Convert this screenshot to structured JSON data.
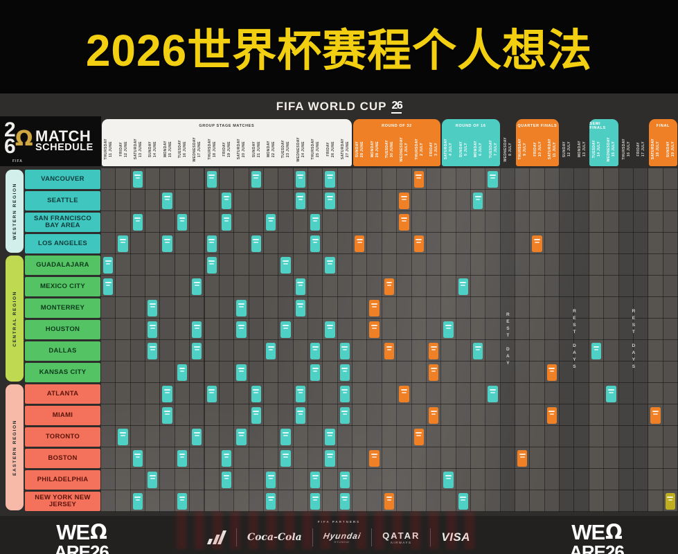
{
  "banner": {
    "title": "2026世界杯赛程个人想法"
  },
  "header": {
    "brand": "FIFA WORLD CUP",
    "badge": "26"
  },
  "logo": {
    "digit_top": "2",
    "digit_bottom": "6",
    "fifa_label": "FIFA",
    "line1": "MATCH",
    "line2": "SCHEDULE"
  },
  "footer": {
    "partners_label": "FIFA PARTNERS",
    "we_line1": "WE",
    "we_line2": "ARE26",
    "sponsors": {
      "cocacola": "Coca-Cola",
      "hyundai": "Hyundai",
      "hyundai_sub": "HYUNDAI",
      "qatar": "QATAR",
      "qatar_sub": "AIRWAYS",
      "visa": "VISA"
    }
  },
  "colors": {
    "title_yellow": "#f3cf11",
    "teal": "#4fd0c5",
    "orange": "#f08025",
    "gold": "#bfae20",
    "western_sidebar": "#d2efec",
    "western_city": "#3fc6be",
    "central_sidebar": "#bfda50",
    "central_city": "#53c364",
    "eastern_sidebar": "#f7b9a8",
    "eastern_city": "#f4715b"
  },
  "chart_data": {
    "type": "heatmap",
    "title": "FIFA World Cup 26 Match Schedule",
    "sections": [
      {
        "label": "GROUP STAGE MATCHES",
        "start": 1,
        "end": 17,
        "theme": "light"
      },
      {
        "label": "ROUND OF 32",
        "start": 18,
        "end": 23,
        "theme": "orange"
      },
      {
        "label": "ROUND OF 16",
        "start": 24,
        "end": 27,
        "theme": "teal"
      },
      {
        "label": "QUARTER FINALS",
        "start": 29,
        "end": 31,
        "theme": "orange"
      },
      {
        "label": "SEMI FINALS",
        "start": 34,
        "end": 35,
        "theme": "teal"
      },
      {
        "label": "FINAL",
        "start": 38,
        "end": 39,
        "theme": "orange"
      }
    ],
    "columns": [
      {
        "day": "THURSDAY",
        "date": "11 JUNE",
        "kind": "group"
      },
      {
        "day": "FRIDAY",
        "date": "12 JUNE",
        "kind": "group"
      },
      {
        "day": "SATURDAY",
        "date": "13 JUNE",
        "kind": "group"
      },
      {
        "day": "SUNDAY",
        "date": "14 JUNE",
        "kind": "group"
      },
      {
        "day": "MONDAY",
        "date": "15 JUNE",
        "kind": "group"
      },
      {
        "day": "TUESDAY",
        "date": "16 JUNE",
        "kind": "group"
      },
      {
        "day": "WEDNESDAY",
        "date": "17 JUNE",
        "kind": "group"
      },
      {
        "day": "THURSDAY",
        "date": "18 JUNE",
        "kind": "group"
      },
      {
        "day": "FRIDAY",
        "date": "19 JUNE",
        "kind": "group"
      },
      {
        "day": "SATURDAY",
        "date": "20 JUNE",
        "kind": "group"
      },
      {
        "day": "SUNDAY",
        "date": "21 JUNE",
        "kind": "group"
      },
      {
        "day": "MONDAY",
        "date": "22 JUNE",
        "kind": "group"
      },
      {
        "day": "TUESDAY",
        "date": "23 JUNE",
        "kind": "group"
      },
      {
        "day": "WEDNESDAY",
        "date": "24 JUNE",
        "kind": "group"
      },
      {
        "day": "THURSDAY",
        "date": "25 JUNE",
        "kind": "group"
      },
      {
        "day": "FRIDAY",
        "date": "26 JUNE",
        "kind": "group"
      },
      {
        "day": "SATURDAY",
        "date": "27 JUNE",
        "kind": "group"
      },
      {
        "day": "SUNDAY",
        "date": "28 JUNE",
        "kind": "r32"
      },
      {
        "day": "MONDAY",
        "date": "29 JUNE",
        "kind": "r32"
      },
      {
        "day": "TUESDAY",
        "date": "30 JUNE",
        "kind": "r32"
      },
      {
        "day": "WEDNESDAY",
        "date": "1 JULY",
        "kind": "r32"
      },
      {
        "day": "THURSDAY",
        "date": "2 JULY",
        "kind": "r32"
      },
      {
        "day": "FRIDAY",
        "date": "3 JULY",
        "kind": "r32"
      },
      {
        "day": "SATURDAY",
        "date": "4 JULY",
        "kind": "r16"
      },
      {
        "day": "SUNDAY",
        "date": "5 JULY",
        "kind": "r16"
      },
      {
        "day": "MONDAY",
        "date": "6 JULY",
        "kind": "r16"
      },
      {
        "day": "TUESDAY",
        "date": "7 JULY",
        "kind": "r16"
      },
      {
        "day": "WEDNESDAY",
        "date": "8 JULY",
        "kind": "rest"
      },
      {
        "day": "THURSDAY",
        "date": "9 JULY",
        "kind": "qf"
      },
      {
        "day": "FRIDAY",
        "date": "10 JULY",
        "kind": "qf"
      },
      {
        "day": "SATURDAY",
        "date": "11 JULY",
        "kind": "qf"
      },
      {
        "day": "SUNDAY",
        "date": "12 JULY",
        "kind": "rest"
      },
      {
        "day": "MONDAY",
        "date": "13 JULY",
        "kind": "rest"
      },
      {
        "day": "TUESDAY",
        "date": "14 JULY",
        "kind": "sf"
      },
      {
        "day": "WEDNESDAY",
        "date": "15 JULY",
        "kind": "sf"
      },
      {
        "day": "THURSDAY",
        "date": "16 JULY",
        "kind": "rest"
      },
      {
        "day": "FRIDAY",
        "date": "17 JULY",
        "kind": "rest"
      },
      {
        "day": "SATURDAY",
        "date": "18 JULY",
        "kind": "final"
      },
      {
        "day": "SUNDAY",
        "date": "19 JULY",
        "kind": "final"
      }
    ],
    "rest_labels": [
      {
        "text": "REST DAY",
        "start": 28,
        "end": 28
      },
      {
        "text": "REST DAYS",
        "start": 32,
        "end": 33
      },
      {
        "text": "REST DAYS",
        "start": 36,
        "end": 37
      }
    ],
    "regions": [
      {
        "name": "WESTERN REGION",
        "rows": [
          1,
          4
        ],
        "sidebar": "#d2efec",
        "city_bg": "#3fc6be",
        "text": "#0e3a3a",
        "cities": [
          "VANCOUVER",
          "SEATTLE",
          "SAN FRANCISCO BAY AREA",
          "LOS ANGELES"
        ]
      },
      {
        "name": "CENTRAL REGION",
        "rows": [
          5,
          10
        ],
        "sidebar": "#bfda50",
        "city_bg": "#53c364",
        "text": "#0e3a1c",
        "cities": [
          "GUADALAJARA",
          "MEXICO CITY",
          "MONTERREY",
          "HOUSTON",
          "DALLAS",
          "KANSAS CITY"
        ]
      },
      {
        "name": "EASTERN REGION",
        "rows": [
          11,
          16
        ],
        "sidebar": "#f7b9a8",
        "city_bg": "#f4715b",
        "text": "#5a140a",
        "cities": [
          "ATLANTA",
          "MIAMI",
          "TORONTO",
          "BOSTON",
          "PHILADELPHIA",
          "NEW YORK NEW JERSEY"
        ]
      }
    ],
    "matches": {
      "teal": {
        "1": [
          3,
          8,
          11,
          14,
          16,
          27
        ],
        "2": [
          5,
          9,
          14,
          16,
          26
        ],
        "3": [
          3,
          6,
          9,
          12,
          15
        ],
        "4": [
          2,
          5,
          8,
          11,
          15
        ],
        "5": [
          1,
          8,
          13,
          16
        ],
        "6": [
          1,
          7,
          14,
          25
        ],
        "7": [
          4,
          10,
          14
        ],
        "8": [
          4,
          7,
          10,
          13,
          16,
          24
        ],
        "9": [
          4,
          7,
          12,
          15,
          17,
          26,
          34
        ],
        "10": [
          6,
          10,
          15,
          17
        ],
        "11": [
          5,
          8,
          11,
          14,
          17,
          27,
          35
        ],
        "12": [
          5,
          11,
          14,
          17
        ],
        "13": [
          2,
          7,
          10,
          13,
          16
        ],
        "14": [
          3,
          6,
          9,
          13,
          16
        ],
        "15": [
          4,
          9,
          12,
          15,
          17,
          24
        ],
        "16": [
          3,
          6,
          12,
          15,
          17,
          25
        ]
      },
      "orange": {
        "1": [
          22
        ],
        "2": [
          21
        ],
        "3": [
          21
        ],
        "4": [
          18,
          22,
          30
        ],
        "6": [
          20
        ],
        "7": [
          19
        ],
        "8": [
          19
        ],
        "9": [
          20,
          23
        ],
        "10": [
          23,
          31
        ],
        "11": [
          21
        ],
        "12": [
          23,
          31,
          38
        ],
        "13": [
          22
        ],
        "14": [
          19,
          29
        ],
        "16": [
          20
        ]
      },
      "gold": {
        "16": [
          39
        ]
      }
    }
  }
}
